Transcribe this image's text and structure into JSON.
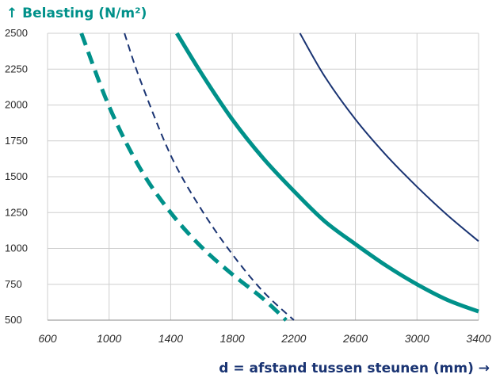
{
  "chart_data": {
    "type": "line",
    "ylabel": "↑ Belasting (N/m²)",
    "xlabel": "d = afstand tussen steunen (mm) →",
    "xlim": [
      600,
      3400
    ],
    "ylim": [
      500,
      2500
    ],
    "x_ticks": [
      "600",
      "1000",
      "1400",
      "1800",
      "2200",
      "2600",
      "3000",
      "3400"
    ],
    "y_ticks": [
      "500",
      "750",
      "1000",
      "1250",
      "1500",
      "1750",
      "2000",
      "2250",
      "2500"
    ],
    "grid": true,
    "legend": "none",
    "series": [
      {
        "color": "#00918a",
        "style": "dashed",
        "weight": "thick",
        "x": [
          820,
          1000,
          1200,
          1400,
          1600,
          1800,
          2000,
          2150
        ],
        "y": [
          2500,
          1990,
          1560,
          1250,
          1010,
          820,
          650,
          500
        ]
      },
      {
        "color": "#1a3473",
        "style": "dashed",
        "weight": "thin",
        "x": [
          1100,
          1200,
          1400,
          1600,
          1800,
          2000,
          2200
        ],
        "y": [
          2500,
          2180,
          1650,
          1270,
          960,
          700,
          500
        ]
      },
      {
        "color": "#00918a",
        "style": "solid",
        "weight": "thick",
        "x": [
          1440,
          1600,
          1800,
          2000,
          2200,
          2400,
          2600,
          2800,
          3000,
          3200,
          3400
        ],
        "y": [
          2500,
          2220,
          1900,
          1630,
          1400,
          1190,
          1030,
          880,
          750,
          640,
          560
        ]
      },
      {
        "color": "#1a3473",
        "style": "solid",
        "weight": "thin",
        "x": [
          2240,
          2400,
          2600,
          2800,
          3000,
          3200,
          3400
        ],
        "y": [
          2500,
          2200,
          1900,
          1650,
          1430,
          1230,
          1050
        ]
      }
    ]
  }
}
